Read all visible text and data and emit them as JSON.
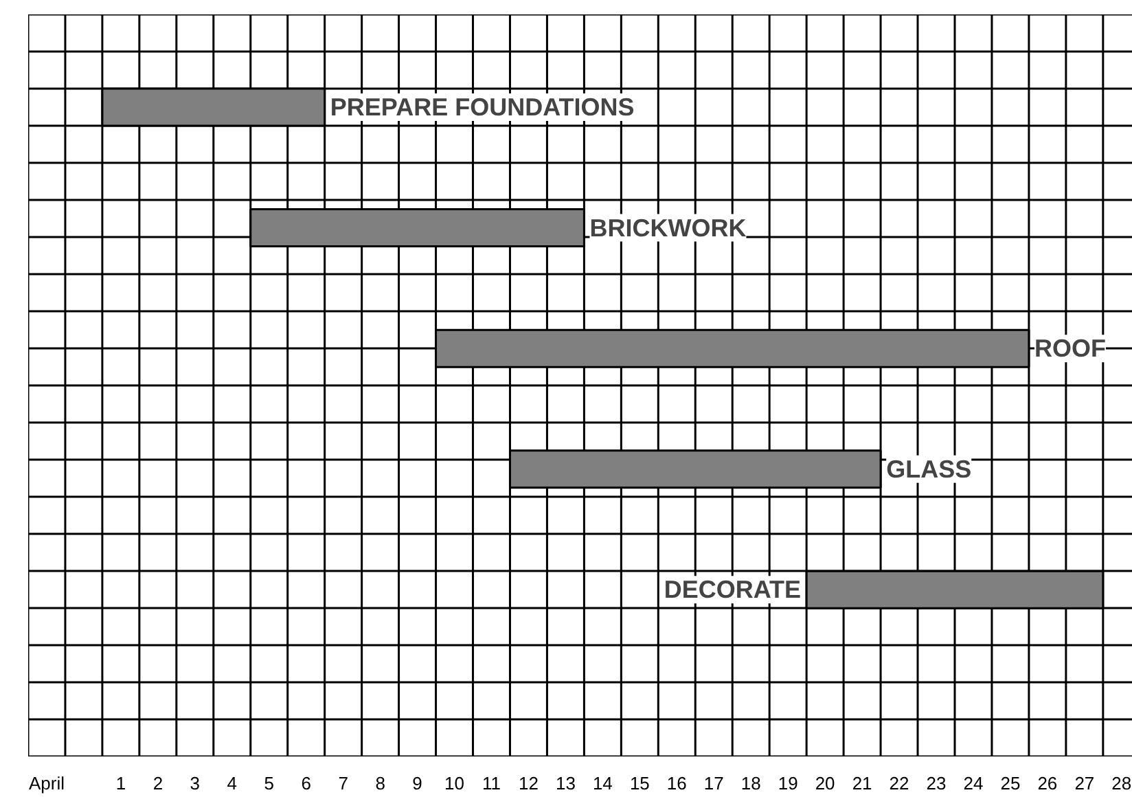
{
  "chart_data": {
    "type": "bar",
    "orientation": "horizontal",
    "categories": [
      "PREPARE FOUNDATIONS",
      "BRICKWORK",
      "ROOF",
      "GLASS",
      "DECORATE"
    ],
    "base": [
      0.5,
      4.5,
      9.5,
      11.5,
      19.5
    ],
    "values": [
      6,
      9,
      16,
      10,
      8
    ],
    "color": "#808080",
    "xlim": [
      -1.5,
      28.3
    ],
    "xticks": [
      {
        "value": -1,
        "label": "April"
      },
      1,
      2,
      3,
      4,
      5,
      6,
      7,
      8,
      9,
      10,
      11,
      12,
      13,
      14,
      15,
      16,
      17,
      18,
      19,
      20,
      21,
      22,
      23,
      24,
      25,
      26,
      27,
      28
    ],
    "tick_labels": "x",
    "grid": true
  }
}
